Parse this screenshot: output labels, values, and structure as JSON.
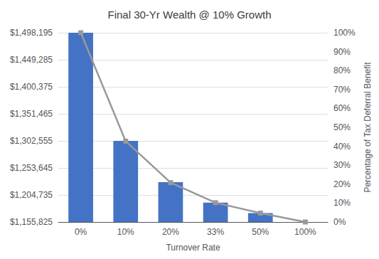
{
  "chart_data": {
    "type": "bar",
    "title": "Final 30-Yr Wealth @ 10% Growth",
    "xlabel": "Turnover Rate",
    "y2label": "Percentage of Tax Deferral Benefit",
    "categories": [
      "0%",
      "10%",
      "20%",
      "33%",
      "50%",
      "100%"
    ],
    "series": [
      {
        "type": "bar",
        "color": "#4472C4",
        "values": [
          1498195,
          1302555,
          1228000,
          1191000,
          1172000,
          1155825
        ]
      },
      {
        "type": "line",
        "axis": "y2",
        "color": "#999999",
        "marker": "square",
        "values": [
          1.0,
          0.427,
          0.208,
          0.102,
          0.047,
          0.0
        ]
      }
    ],
    "ylim": [
      1155825,
      1498195
    ],
    "yticks": [
      {
        "value": 1155825,
        "label": "$1,155,825"
      },
      {
        "value": 1204735,
        "label": "$1,204,735"
      },
      {
        "value": 1253645,
        "label": "$1,253,645"
      },
      {
        "value": 1302555,
        "label": "$1,302,555"
      },
      {
        "value": 1351465,
        "label": "$1,351,465"
      },
      {
        "value": 1400375,
        "label": "$1,400,375"
      },
      {
        "value": 1449285,
        "label": "$1,449,285"
      },
      {
        "value": 1498195,
        "label": "$1,498,195"
      }
    ],
    "y2lim": [
      0.0,
      1.0
    ],
    "y2ticks": [
      {
        "value": 0.0,
        "label": "0%"
      },
      {
        "value": 0.1,
        "label": "10%"
      },
      {
        "value": 0.2,
        "label": "20%"
      },
      {
        "value": 0.3,
        "label": "30%"
      },
      {
        "value": 0.4,
        "label": "40%"
      },
      {
        "value": 0.5,
        "label": "50%"
      },
      {
        "value": 0.6,
        "label": "60%"
      },
      {
        "value": 0.7,
        "label": "70%"
      },
      {
        "value": 0.8,
        "label": "80%"
      },
      {
        "value": 0.9,
        "label": "90%"
      },
      {
        "value": 1.0,
        "label": "100%"
      }
    ],
    "grid": true
  }
}
